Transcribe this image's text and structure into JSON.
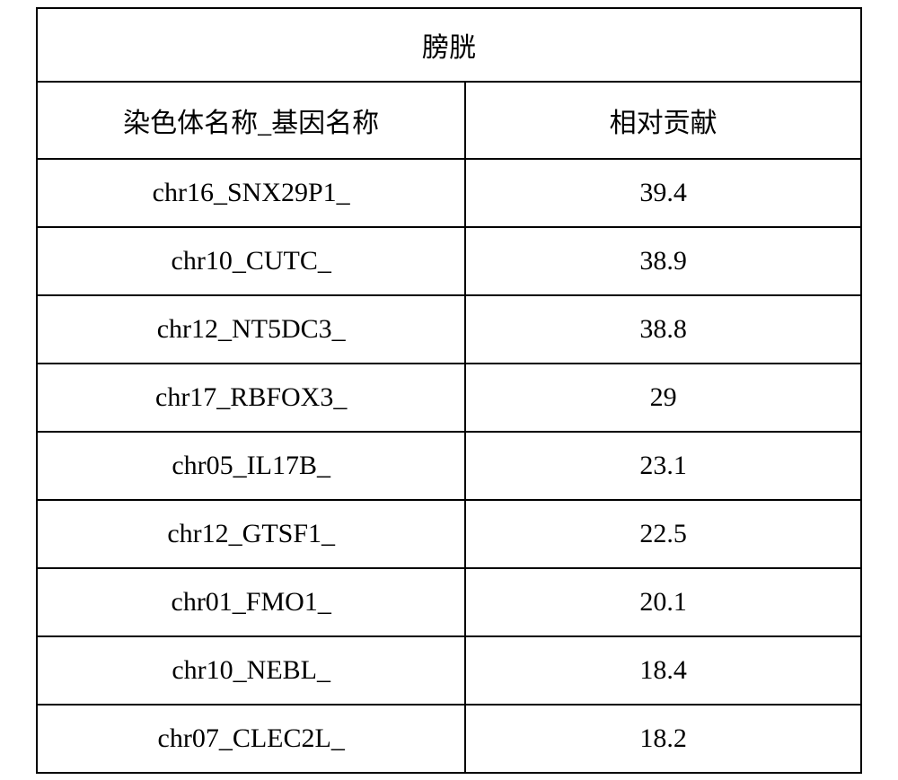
{
  "table": {
    "type": "table",
    "title": "膀胱",
    "columns": [
      "染色体名称_基因名称",
      "相对贡献"
    ],
    "rows": [
      [
        "chr16_SNX29P1_",
        "39.4"
      ],
      [
        "chr10_CUTC_",
        "38.9"
      ],
      [
        "chr12_NT5DC3_",
        "38.8"
      ],
      [
        "chr17_RBFOX3_",
        "29"
      ],
      [
        "chr05_IL17B_",
        "23.1"
      ],
      [
        "chr12_GTSF1_",
        "22.5"
      ],
      [
        "chr01_FMO1_",
        "20.1"
      ],
      [
        "chr10_NEBL_",
        "18.4"
      ],
      [
        "chr07_CLEC2L_",
        "18.2"
      ]
    ],
    "border_color": "#000000",
    "background_color": "#ffffff",
    "text_color": "#000000",
    "font_size": 30,
    "col_widths": [
      "52%",
      "48%"
    ],
    "cell_padding_v": 20,
    "cell_padding_h": 10,
    "border_width": 2
  }
}
